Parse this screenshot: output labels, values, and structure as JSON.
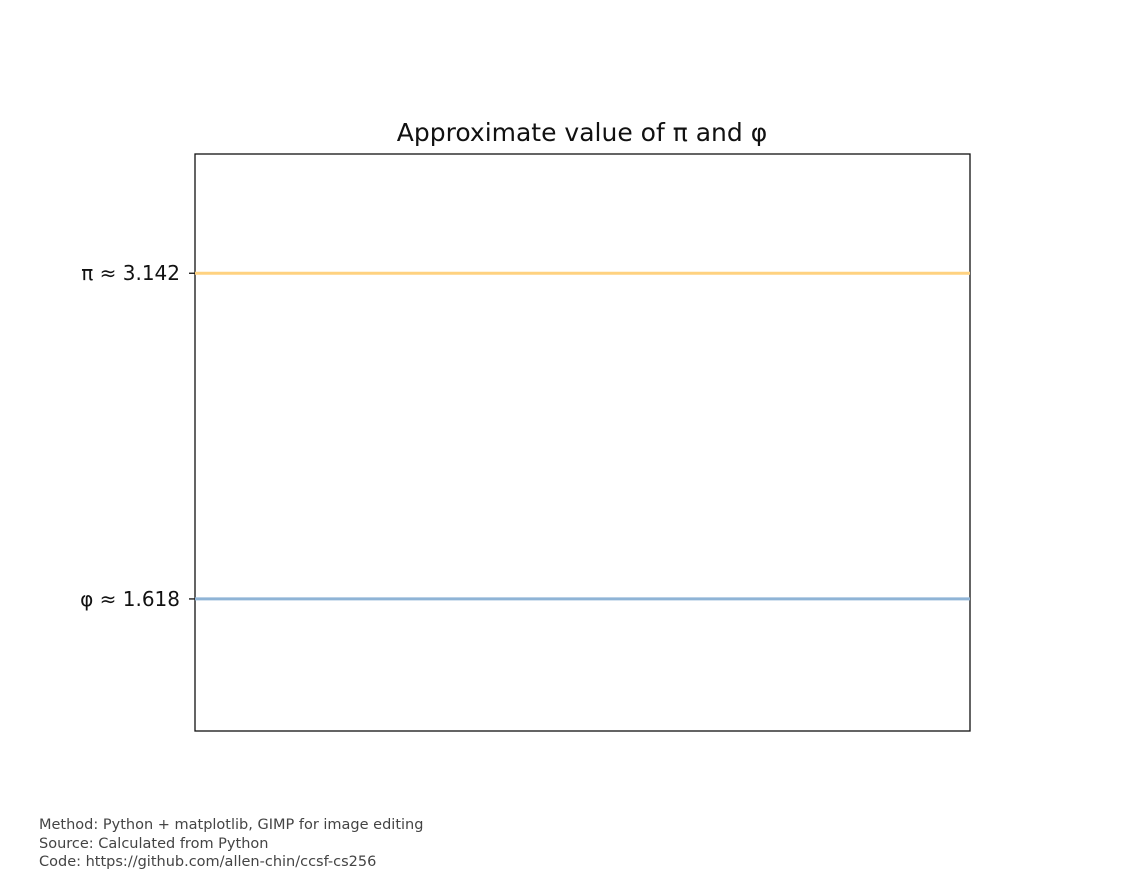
{
  "chart_data": {
    "type": "line",
    "title": "Approximate value of π and φ",
    "xlabel": "",
    "ylabel": "",
    "ylim": [
      1,
      3.7
    ],
    "grid": false,
    "legend": "none",
    "series": [
      {
        "value": 3.142,
        "tick_label": "π ≈ 3.142",
        "color": "#ffd280"
      },
      {
        "value": 1.618,
        "tick_label": "φ ≈ 1.618",
        "color": "#8fb4d6"
      }
    ]
  },
  "footer": {
    "method": "Method: Python + matplotlib, GIMP for image editing",
    "source": "Source: Calculated from Python",
    "code": "Code: https://github.com/allen-chin/ccsf-cs256"
  }
}
